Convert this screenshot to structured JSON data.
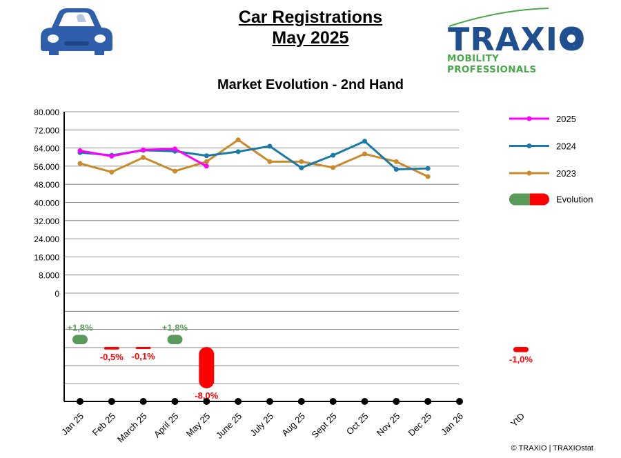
{
  "header": {
    "title_line1": "Car Registrations",
    "title_line2": "May 2025"
  },
  "brand": {
    "name": "TRAXIO",
    "tagline": "MOBILITY PROFESSIONALS",
    "primary_color": "#1f4f8f",
    "accent_color": "#49a84a"
  },
  "icons": {
    "car": "car-icon",
    "gear": "gear-icon"
  },
  "copyright": "© TRAXIO | TRAXIOstat",
  "chart_data": {
    "type": "line",
    "title": "Market Evolution - 2nd Hand",
    "categories": [
      "Jan 25",
      "Feb 25",
      "March 25",
      "April 25",
      "May 25",
      "June 25",
      "July 25",
      "Aug 25",
      "Sept 25",
      "Oct 25",
      "Nov 25",
      "Dec 25",
      "Jan 26"
    ],
    "extra_category": "YtD",
    "y_ticks": [
      "80.000",
      "72.000",
      "64.000",
      "56.000",
      "48.000",
      "40.000",
      "32.000",
      "24.000",
      "16.000",
      "8.000",
      "0"
    ],
    "ylim": [
      0,
      80000
    ],
    "grid": true,
    "legend_position": "right",
    "series": [
      {
        "name": "2025",
        "color": "#ff00ff",
        "values": [
          62800,
          60400,
          63200,
          63600,
          56000,
          null,
          null,
          null,
          null,
          null,
          null,
          null,
          null
        ]
      },
      {
        "name": "2024",
        "color": "#1a7aa5",
        "values": [
          62000,
          60800,
          63000,
          62600,
          60600,
          62400,
          64800,
          55300,
          60800,
          67000,
          54600,
          55000,
          null
        ]
      },
      {
        "name": "2023",
        "color": "#c98a2c",
        "values": [
          57200,
          53400,
          59800,
          53800,
          58000,
          67600,
          58000,
          58000,
          55400,
          61400,
          58000,
          51400,
          null
        ]
      }
    ],
    "evolution": {
      "legend_label": "Evolution",
      "positive_color": "#5a9a5a",
      "negative_color": "#ff0000",
      "values": [
        {
          "category": "Jan 25",
          "value": 1.8,
          "label": "+1,8%"
        },
        {
          "category": "Feb 25",
          "value": -0.5,
          "label": "-0,5%"
        },
        {
          "category": "March 25",
          "value": -0.1,
          "label": "-0,1%"
        },
        {
          "category": "April 25",
          "value": 1.8,
          "label": "+1,8%"
        },
        {
          "category": "May 25",
          "value": -8.0,
          "label": "-8,0%"
        },
        {
          "category": "YtD",
          "value": -1.0,
          "label": "-1,0%"
        }
      ]
    }
  }
}
